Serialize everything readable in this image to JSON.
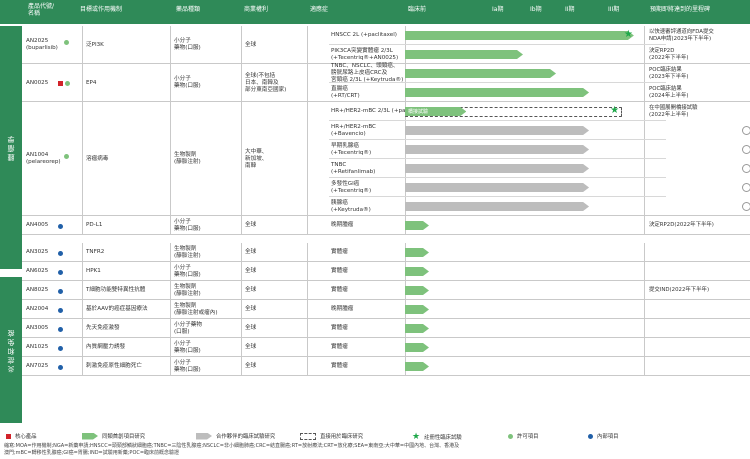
{
  "header": {
    "product": "產品代號/\n名稱",
    "target": "目標或作用機制",
    "form": "藥品種類",
    "rights": "商業權利",
    "indication": "適應症",
    "preclinical": "臨床前",
    "phase1a": "Ia期",
    "phase1b": "Ib期",
    "phase2": "II期",
    "phase3": "III期",
    "milestone": "預期即將達到的里程碑"
  },
  "sections": [
    {
      "label": "腫瘤學"
    },
    {
      "label": "炎症和免疫"
    }
  ],
  "rows": [
    {
      "name": "AN2025\n(buparlisib)",
      "target": "泛PI3K",
      "form": "小分子\n藥物(口服)",
      "rights": "全球",
      "subs": [
        {
          "ind": "HNSCC 2L (+paclitaxel)",
          "bar": "g",
          "end": 0.97,
          "star": true,
          "next": "以快速審評通道向FDA提交\nNDA申請(2023年下半年)"
        },
        {
          "ind": "PIK3CA突變實體瘤 2/3L\n(+Tecentriq®+AN0025)",
          "bar": "g",
          "end": 0.5,
          "next": "決定RP2D\n(2022年下半年)"
        }
      ]
    },
    {
      "name": "AN0025",
      "target": "EP4",
      "form": "小分子\n藥物(口服)",
      "rights": "全球(不包括\n日本、南韓及\n部分東南亞國家)",
      "subs": [
        {
          "ind": "TNBC、NSCLC、頭頸癌、\n膀胱尿路上皮癌CRC及\n宮頸癌 2/3L (+Keytruda®)",
          "bar": "g",
          "end": 0.64,
          "next": "POC臨床結果\n(2023年下半年)"
        },
        {
          "ind": "直腸癌\n(+RT/CRT)",
          "bar": "g",
          "end": 0.78,
          "next": "POC臨床結果\n(2024年上半年)"
        }
      ]
    },
    {
      "name": "AN1004\n(pelareorep)",
      "target": "溶瘤病毒",
      "form": "生物製劑\n(靜脈注射)",
      "rights": "大中華、\n新加坡、\n南韓",
      "subs": [
        {
          "ind": "HR+/HER2-mBC 2/3L (+paclitaxel)",
          "bar": "g",
          "end": 0.26,
          "dash": true,
          "dashEnd": 0.92,
          "barText": "橋接試驗",
          "star": true,
          "next": "在中國展開橋接試驗\n(2022年上半年)"
        },
        {
          "ind": "HR+/HER2-mBC\n(+Bavencio)",
          "bar": "s",
          "end": 0.78,
          "circle": true
        },
        {
          "ind": "早期乳腺癌\n(+Tecentriq®)",
          "bar": "s",
          "end": 0.78,
          "circle": true
        },
        {
          "ind": "TNBC\n(+Retifanlimab)",
          "bar": "s",
          "end": 0.78,
          "circle": true
        },
        {
          "ind": "多發性GI癌\n(+Tecentriq®)",
          "bar": "s",
          "end": 0.78,
          "circle": true
        },
        {
          "ind": "胰腺癌\n(+Keytruda®)",
          "bar": "s",
          "end": 0.78,
          "circle": true
        }
      ]
    },
    {
      "name": "AN4005",
      "target": "PD-L1",
      "form": "小分子\n藥物(口服)",
      "rights": "全球",
      "subs": [
        {
          "ind": "晚期腫瘤",
          "bar": "g",
          "end": 0.1,
          "next": "決定RP2D(2022年下半年)"
        }
      ]
    },
    {
      "name": "AN3025",
      "target": "TNFR2",
      "form": "生物製劑\n(靜脈注射)",
      "rights": "全球",
      "subs": [
        {
          "ind": "實體瘤",
          "bar": "g",
          "end": 0.1
        }
      ]
    },
    {
      "name": "AN6025",
      "target": "HPK1",
      "form": "小分子\n藥物(口服)",
      "rights": "全球",
      "subs": [
        {
          "ind": "實體瘤",
          "bar": "g",
          "end": 0.1
        }
      ]
    },
    {
      "name": "AN8025",
      "target": "T細胞功能雙特異性抗體",
      "form": "生物製劑\n(靜脈注射)",
      "rights": "全球",
      "subs": [
        {
          "ind": "實體瘤",
          "bar": "g",
          "end": 0.1,
          "next": "提交IND(2022年下半年)"
        }
      ]
    },
    {
      "name": "AN2004",
      "target": "基於AAV的癌症基因療法",
      "form": "生物製劑\n(靜脈注射或瘤內)",
      "rights": "全球",
      "subs": [
        {
          "ind": "晚期腫瘤",
          "bar": "g",
          "end": 0.1
        }
      ]
    },
    {
      "name": "AN3005",
      "target": "先天免疫激發",
      "form": "小分子藥物\n(口服)",
      "rights": "全球",
      "subs": [
        {
          "ind": "實體瘤",
          "bar": "g",
          "end": 0.1
        }
      ]
    },
    {
      "name": "AN1025",
      "target": "內質網壓力誘發",
      "form": "小分子\n藥物(口服)",
      "rights": "全球",
      "subs": [
        {
          "ind": "實體瘤",
          "bar": "g",
          "end": 0.1
        }
      ]
    },
    {
      "name": "AN7025",
      "target": "刺激免疫原性細胞死亡",
      "form": "小分子\n藥物(口服)",
      "rights": "全球",
      "subs": [
        {
          "ind": "實體瘤",
          "bar": "g",
          "end": 0.1
        }
      ]
    }
  ],
  "legend": {
    "core": "核心產品",
    "proprietary": "同類首創項目研究",
    "partner": "合作夥伴的臨床試驗研究",
    "bridge": "直接用於臨床研究",
    "pivotal": "註冊性臨床試驗",
    "licensed": "許可項目",
    "inhouse": "內部項目"
  },
  "footnote": "縮寫:MOA=作用機制;NGA=新藥申請;HNSCC=頭頸部鱗狀細胞癌;TNBC=三陰性乳腺癌;NSCLC=非小細胞肺癌;CRC=結直腸癌;RT=放射療法;CRT=放化療;SEA=東南亞;大中華=中國內地、台灣、香港及\n澳門;mBC=轉移性乳腺癌;GI癌=胃腸;IND=試驗用新藥;POC=臨床前概念驗證",
  "colors": {
    "green": "#2f8a58",
    "barGreen": "#7ec27c",
    "barGray": "#bdbdbd",
    "red": "#d2232a",
    "blue": "#2160a8",
    "star": "#1fa84a"
  },
  "markers": {
    "AN2025": "green-dot",
    "AN0025": "red-square green-dot",
    "AN1004": "green-dot",
    "AN4005": "blue-dot",
    "AN3025": "blue-dot",
    "AN6025": "blue-dot",
    "AN8025": "blue-dot",
    "AN2004": "blue-dot",
    "AN3005": "blue-dot",
    "AN1025": "blue-dot",
    "AN7025": "blue-dot"
  }
}
